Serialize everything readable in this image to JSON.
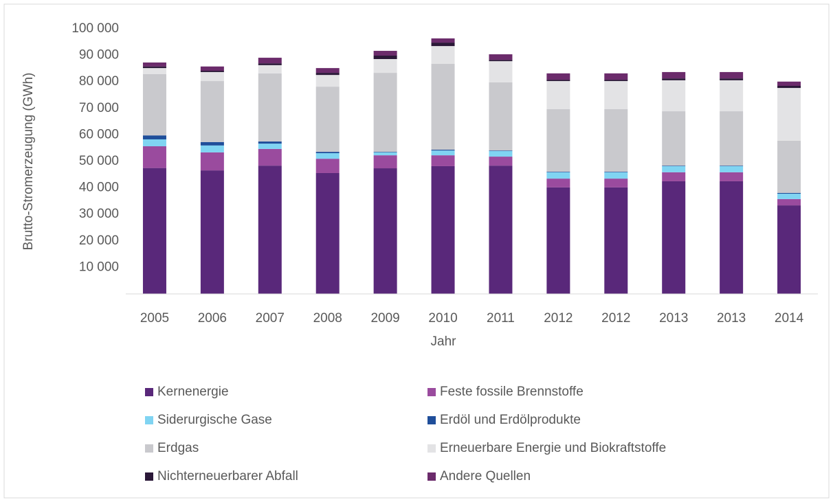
{
  "chart_data": {
    "type": "stacked-bar",
    "xlabel": "Jahr",
    "ylabel": "Brutto-Stromerzeugung (GWh)",
    "categories": [
      "2005",
      "2006",
      "2007",
      "2008",
      "2009",
      "2010",
      "2011",
      "2012",
      "2012",
      "2013",
      "2013",
      "2014"
    ],
    "series": [
      {
        "name": "Kernenergie",
        "color": "#59287a",
        "values": [
          47500,
          46600,
          48400,
          45600,
          47400,
          48200,
          48400,
          40200,
          40200,
          42500,
          42500,
          33400
        ]
      },
      {
        "name": "Feste fossile Brennstoffe",
        "color": "#9a4b9e",
        "values": [
          8200,
          6800,
          6300,
          5400,
          4900,
          4100,
          3400,
          3300,
          3300,
          3400,
          3400,
          2400
        ]
      },
      {
        "name": "Siderurgische Gase",
        "color": "#80d4f2",
        "values": [
          2600,
          2600,
          2000,
          2100,
          1100,
          1800,
          2100,
          2400,
          2400,
          2300,
          2300,
          2000
        ]
      },
      {
        "name": "Erdöl und Erdölprodukte",
        "color": "#1f4e9a",
        "values": [
          1500,
          1300,
          800,
          500,
          200,
          300,
          200,
          200,
          200,
          200,
          200,
          300
        ]
      },
      {
        "name": "Erdgas",
        "color": "#c9c9cd",
        "values": [
          23100,
          23000,
          25700,
          24600,
          29800,
          32400,
          25700,
          23600,
          23600,
          20500,
          20500,
          19700
        ]
      },
      {
        "name": "Erneuerbare Energie und Biokraftstoffe",
        "color": "#e3e3e5",
        "values": [
          2300,
          3400,
          3100,
          4400,
          5200,
          6700,
          8000,
          10600,
          10600,
          11700,
          11700,
          19900
        ]
      },
      {
        "name": "Nichterneuerbarer Abfall",
        "color": "#2b1838",
        "values": [
          600,
          500,
          700,
          800,
          1300,
          1300,
          500,
          500,
          500,
          700,
          700,
          800
        ]
      },
      {
        "name": "Andere Quellen",
        "color": "#6b2b6b",
        "values": [
          1500,
          1600,
          2100,
          1800,
          1800,
          1600,
          2100,
          2400,
          2400,
          2400,
          2400,
          1600
        ]
      }
    ],
    "ylim": [
      0,
      100000
    ],
    "yticks": [
      {
        "value": 10000,
        "label": "10 000"
      },
      {
        "value": 20000,
        "label": "20 000"
      },
      {
        "value": 30000,
        "label": "30 000"
      },
      {
        "value": 40000,
        "label": "40 000"
      },
      {
        "value": 50000,
        "label": "50 000"
      },
      {
        "value": 60000,
        "label": "60 000"
      },
      {
        "value": 70000,
        "label": "70 000"
      },
      {
        "value": 80000,
        "label": "80 000"
      },
      {
        "value": 90000,
        "label": "90 000"
      },
      {
        "value": 100000,
        "label": "100 000"
      }
    ],
    "grid": false,
    "legend": "bottom"
  }
}
